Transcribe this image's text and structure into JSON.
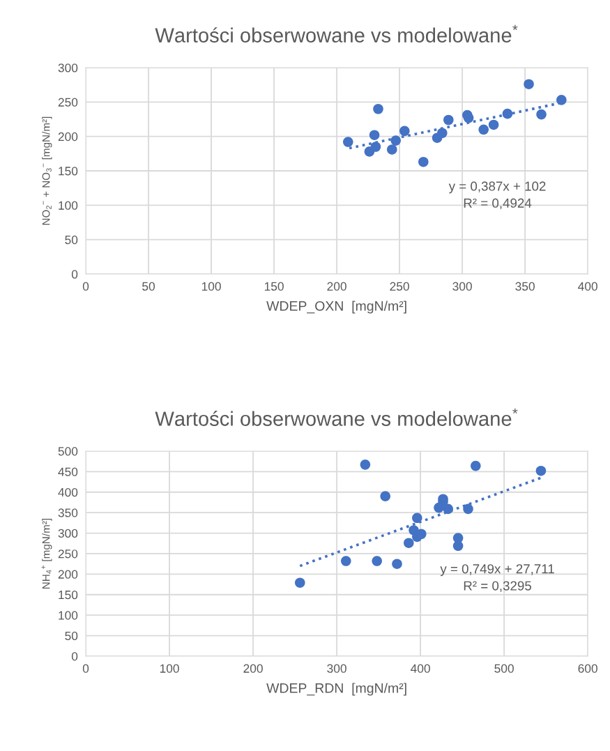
{
  "chart_data": [
    {
      "type": "scatter",
      "title": "Wartości obserwowane vs modelowane$^{*}$",
      "xlabel": "WDEP_OXN  [mgN/m²]",
      "ylabel": "NO$_{2}$$^{−}$ + NO$_{3}$$^{−}$ [mgN/m²]",
      "xlim": [
        0,
        400
      ],
      "xticks": [
        0,
        50,
        100,
        150,
        200,
        250,
        300,
        350,
        400
      ],
      "ylim": [
        0,
        300
      ],
      "yticks": [
        0,
        50,
        100,
        150,
        200,
        250,
        300
      ],
      "grid": true,
      "legend": false,
      "annotations": [
        "y = 0,387x + 102\nR² = 0,4924"
      ],
      "series": [
        {
          "color": "#4472c4",
          "marker": "circle",
          "x": [
            209,
            226,
            230,
            231,
            233,
            244,
            247,
            254,
            269,
            280,
            284,
            289,
            304,
            305,
            317,
            325,
            336,
            353,
            363,
            379
          ],
          "values": [
            192,
            178,
            202,
            185,
            240,
            181,
            194,
            208,
            163,
            198,
            205,
            224,
            231,
            227,
            210,
            217,
            233,
            276,
            232,
            253
          ]
        },
        {
          "type": "line",
          "color": "#4472c4",
          "marker": "none",
          "line_style": "dotted",
          "x": [
            210,
            379
          ],
          "values": [
            183,
            249
          ]
        }
      ]
    },
    {
      "type": "scatter",
      "title": "Wartości obserwowane vs modelowane$^{*}$",
      "xlabel": "WDEP_RDN  [mgN/m²]",
      "ylabel": "NH$_{4}$$^{+}$ [mgN/m²]",
      "xlim": [
        0,
        600
      ],
      "xticks": [
        0,
        100,
        200,
        300,
        400,
        500,
        600
      ],
      "ylim": [
        0,
        500
      ],
      "yticks": [
        0,
        50,
        100,
        150,
        200,
        250,
        300,
        350,
        400,
        450,
        500
      ],
      "grid": true,
      "legend": false,
      "annotations": [
        "y = 0,749x + 27,711\nR² = 0,3295"
      ],
      "series": [
        {
          "color": "#4472c4",
          "marker": "circle",
          "x": [
            256,
            334,
            358,
            311,
            348,
            372,
            386,
            392,
            396,
            396,
            401,
            422,
            427,
            427,
            433,
            445,
            445,
            457,
            466,
            544
          ],
          "values": [
            179,
            467,
            390,
            232,
            232,
            225,
            276,
            307,
            337,
            291,
            298,
            362,
            383,
            377,
            359,
            288,
            269,
            359,
            464,
            452
          ]
        },
        {
          "type": "line",
          "color": "#4472c4",
          "marker": "none",
          "line_style": "dotted",
          "x": [
            256,
            544
          ],
          "values": [
            220,
            435
          ]
        }
      ]
    }
  ]
}
